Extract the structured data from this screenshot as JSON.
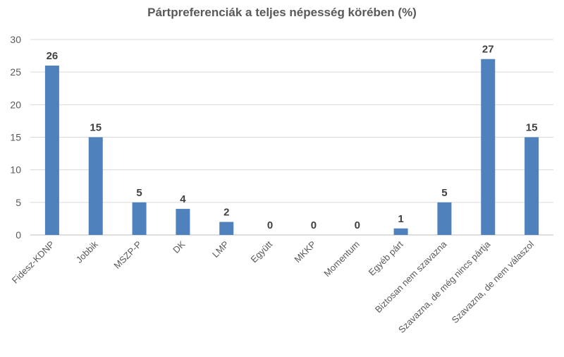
{
  "chart_data": {
    "type": "bar",
    "title": "Pártpreferenciák a teljes népesség körében (%)",
    "xlabel": "",
    "ylabel": "",
    "ylim": [
      0,
      30
    ],
    "yticks": [
      0,
      5,
      10,
      15,
      20,
      25,
      30
    ],
    "grid": true,
    "legend": "none",
    "categories": [
      "Fidesz-KDNP",
      "Jobbik",
      "MSZP-P",
      "DK",
      "LMP",
      "Együtt",
      "MKKP",
      "Momentum",
      "Egyéb párt",
      "Biztosan nem szavazna",
      "Szavazna, de még nincs pártja",
      "Szavazna, de nem válaszol"
    ],
    "values": [
      26,
      15,
      5,
      4,
      2,
      0,
      0,
      0,
      1,
      5,
      27,
      15
    ],
    "bar_color": "#4f81bd"
  }
}
